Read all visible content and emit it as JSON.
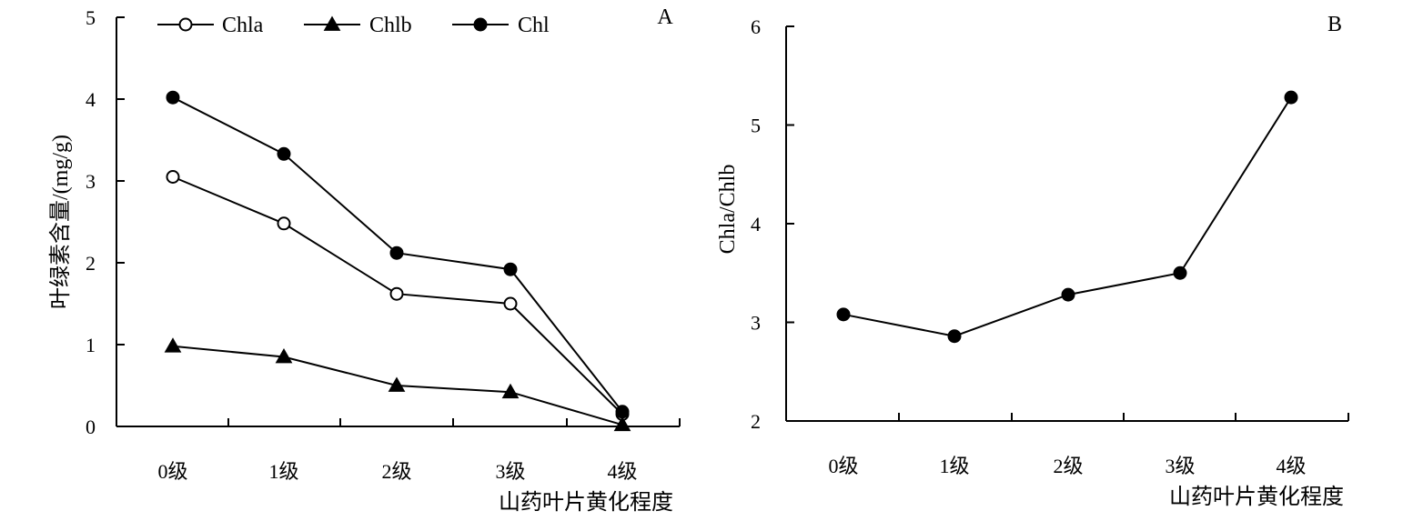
{
  "chart_data": [
    {
      "type": "line",
      "panel_label": "A",
      "categories": [
        "0级",
        "1级",
        "2级",
        "3级",
        "4级"
      ],
      "xlabel": "山药叶片黄化程度",
      "ylabel": "叶绿素含量/(mg/g)",
      "ylim": [
        0,
        5
      ],
      "yticks": [
        "0",
        "1",
        "2",
        "3",
        "4",
        "5"
      ],
      "grid": false,
      "legend_position": "top",
      "series": [
        {
          "name": "Chla",
          "marker": "open-circle",
          "values": [
            3.05,
            2.48,
            1.62,
            1.5,
            0.15
          ]
        },
        {
          "name": "Chlb",
          "marker": "filled-triangle",
          "values": [
            0.98,
            0.85,
            0.5,
            0.42,
            0.02
          ]
        },
        {
          "name": "Chl",
          "marker": "filled-circle",
          "values": [
            4.02,
            3.33,
            2.12,
            1.92,
            0.18
          ]
        }
      ]
    },
    {
      "type": "line",
      "panel_label": "B",
      "categories": [
        "0级",
        "1级",
        "2级",
        "3级",
        "4级"
      ],
      "xlabel": "山药叶片黄化程度",
      "ylabel": "Chla/Chlb",
      "ylim": [
        2,
        6
      ],
      "yticks": [
        "2",
        "3",
        "4",
        "5",
        "6"
      ],
      "grid": false,
      "series": [
        {
          "marker": "filled-circle",
          "values": [
            3.08,
            2.86,
            3.28,
            3.5,
            5.28
          ]
        }
      ]
    }
  ]
}
